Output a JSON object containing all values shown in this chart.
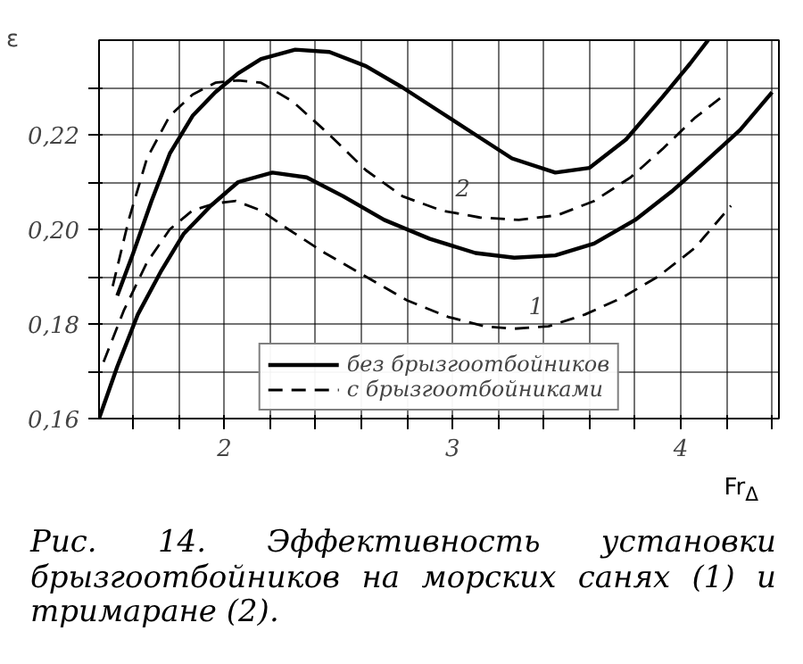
{
  "chart_data": {
    "type": "line",
    "xlabel": "Fr$_{Δ}$",
    "ylabel": "ε",
    "xlim": [
      1.45,
      4.43
    ],
    "ylim": [
      0.16,
      0.24
    ],
    "xticks": [
      {
        "value": 1.6,
        "label": null
      },
      {
        "value": 1.8,
        "label": null
      },
      2,
      {
        "value": 2.2,
        "label": null
      },
      {
        "value": 2.4,
        "label": null
      },
      {
        "value": 2.6,
        "label": null
      },
      {
        "value": 2.8,
        "label": null
      },
      3,
      {
        "value": 3.2,
        "label": null
      },
      {
        "value": 3.4,
        "label": null
      },
      {
        "value": 3.6,
        "label": null
      },
      {
        "value": 3.8,
        "label": null
      },
      4,
      {
        "value": 4.2,
        "label": null
      },
      {
        "value": 4.4,
        "label": null
      }
    ],
    "yticks": [
      {
        "value": 0.16,
        "label": "0,16"
      },
      {
        "value": 0.17,
        "label": null
      },
      {
        "value": 0.18,
        "label": "0,18"
      },
      {
        "value": 0.19,
        "label": null
      },
      {
        "value": 0.2,
        "label": "0,20"
      },
      {
        "value": 0.21,
        "label": null
      },
      {
        "value": 0.22,
        "label": "0,22"
      },
      {
        "value": 0.23,
        "label": null
      }
    ],
    "grid": true,
    "legend": "bottom",
    "marker": "none",
    "series": [
      {
        "name": "без брызгоотбойников",
        "color": "#000000",
        "line_style": "solid",
        "x": [
          1.53,
          1.6,
          1.68,
          1.76,
          1.86,
          1.96,
          2.06,
          2.16,
          2.31,
          2.46,
          2.62,
          2.78,
          2.94,
          3.1,
          3.26,
          3.45,
          3.6,
          3.76,
          3.92,
          4.04,
          4.12
        ],
        "values": [
          0.186,
          0.195,
          0.206,
          0.216,
          0.224,
          0.229,
          0.233,
          0.236,
          0.238,
          0.2375,
          0.2345,
          0.23,
          0.225,
          0.22,
          0.215,
          0.212,
          0.213,
          0.219,
          0.228,
          0.235,
          0.24
        ]
      },
      {
        "name": "с брызгоотбойниками",
        "color": "#000000",
        "line_style": "dashed",
        "x": [
          1.51,
          1.58,
          1.66,
          1.76,
          1.86,
          1.96,
          2.06,
          2.16,
          2.3,
          2.46,
          2.62,
          2.78,
          2.95,
          3.12,
          3.29,
          3.46,
          3.62,
          3.78,
          3.92,
          4.06,
          4.18
        ],
        "values": [
          0.188,
          0.202,
          0.215,
          0.224,
          0.2285,
          0.231,
          0.2315,
          0.231,
          0.227,
          0.22,
          0.2125,
          0.207,
          0.204,
          0.2025,
          0.202,
          0.203,
          0.206,
          0.211,
          0.217,
          0.2235,
          0.228
        ]
      },
      {
        "color": "#000000",
        "line_style": "solid",
        "x": [
          1.45,
          1.53,
          1.62,
          1.72,
          1.82,
          1.94,
          2.06,
          2.21,
          2.36,
          2.52,
          2.7,
          2.9,
          3.1,
          3.27,
          3.45,
          3.62,
          3.8,
          3.96,
          4.1,
          4.26,
          4.4
        ],
        "values": [
          0.16,
          0.171,
          0.182,
          0.191,
          0.199,
          0.205,
          0.21,
          0.212,
          0.211,
          0.207,
          0.202,
          0.198,
          0.195,
          0.194,
          0.1945,
          0.197,
          0.202,
          0.208,
          0.214,
          0.221,
          0.229
        ]
      },
      {
        "color": "#000000",
        "line_style": "dashed",
        "x": [
          1.47,
          1.56,
          1.66,
          1.76,
          1.86,
          1.96,
          2.05,
          2.16,
          2.28,
          2.44,
          2.62,
          2.8,
          2.98,
          3.14,
          3.27,
          3.42,
          3.58,
          3.74,
          3.9,
          4.06,
          4.22
        ],
        "values": [
          0.172,
          0.183,
          0.193,
          0.2,
          0.204,
          0.2055,
          0.206,
          0.204,
          0.2,
          0.195,
          0.19,
          0.185,
          0.1815,
          0.1795,
          0.179,
          0.1795,
          0.182,
          0.1855,
          0.19,
          0.196,
          0.205
        ]
      }
    ],
    "annotations": [
      {
        "text": "2",
        "x": 2.95,
        "y": 0.204
      },
      {
        "text": "1",
        "x": 3.27,
        "y": 0.179
      },
      "Рис. 14. Эффективность установки брызгоотбойников на морских санях (1) и тримаране (2)."
    ]
  }
}
